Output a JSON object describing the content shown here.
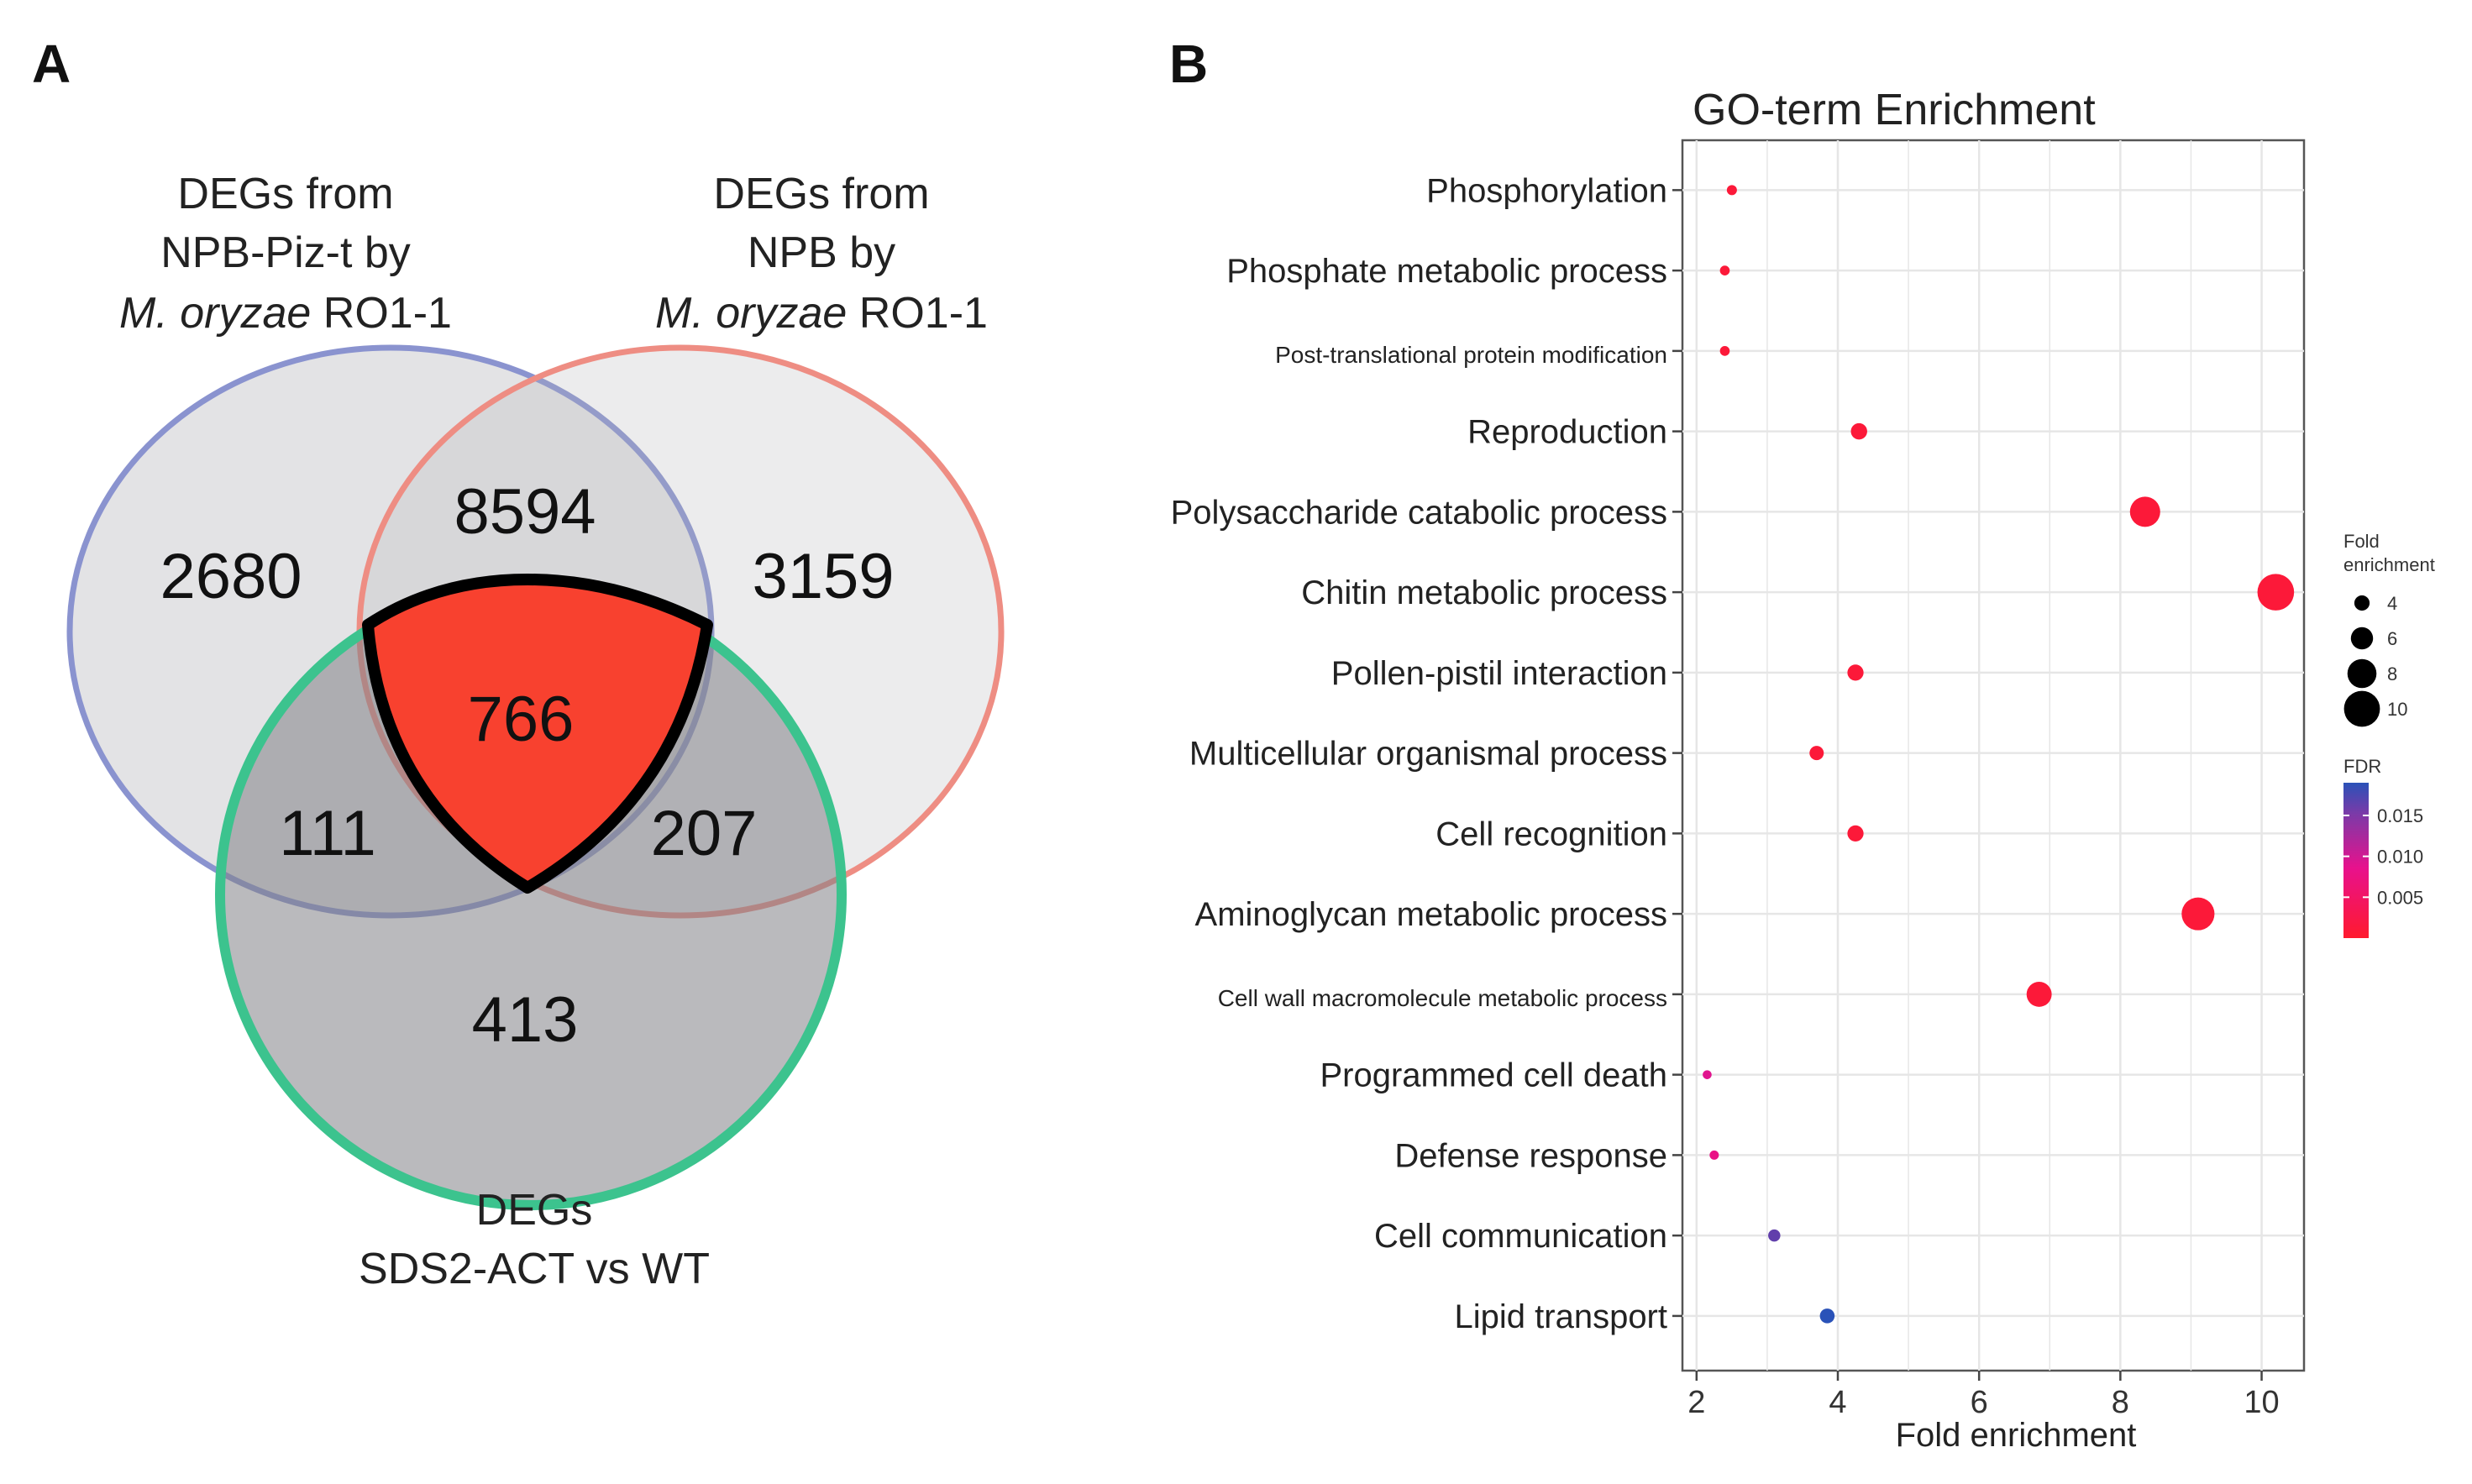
{
  "panel_a": {
    "letter": "A",
    "sets": [
      {
        "name": "npb-piz-t",
        "label_lines": [
          "DEGs from",
          "NPB-Piz-t by"
        ],
        "label_last_italic": "M. oryzae",
        "label_last_plain": " RO1-1",
        "color": "#8a93cf"
      },
      {
        "name": "npb",
        "label_lines": [
          "DEGs from",
          "NPB by"
        ],
        "label_last_italic": "M. oryzae",
        "label_last_plain": " RO1-1",
        "color": "#ee8d83"
      },
      {
        "name": "sds2-act",
        "label_lines": [
          "DEGs",
          "SDS2-ACT vs WT"
        ],
        "color": "#3cc38e"
      }
    ],
    "counts": {
      "only_a": "2680",
      "a_and_b": "8594",
      "only_b": "3159",
      "all_three": "766",
      "a_and_c": "111",
      "b_and_c": "207",
      "only_c": "413"
    },
    "highlight_color": "#f8412f"
  },
  "panel_b": {
    "letter": "B"
  },
  "chart_data": {
    "type": "scatter",
    "title": "GO-term Enrichment",
    "xlabel": "Fold enrichment",
    "ylabel": "",
    "xlim": [
      1.8,
      10.6
    ],
    "xticks": [
      2,
      4,
      6,
      8,
      10
    ],
    "grid": true,
    "terms": [
      {
        "term": "Phosphorylation",
        "fold": 2.5,
        "fdr": 0.001
      },
      {
        "term": "Phosphate metabolic process",
        "fold": 2.4,
        "fdr": 0.001
      },
      {
        "term": "Post-translational protein modification",
        "fold": 2.4,
        "fdr": 0.001
      },
      {
        "term": "Reproduction",
        "fold": 4.3,
        "fdr": 0.001
      },
      {
        "term": "Polysaccharide catabolic process",
        "fold": 8.35,
        "fdr": 0.001
      },
      {
        "term": "Chitin metabolic process",
        "fold": 10.2,
        "fdr": 0.001
      },
      {
        "term": "Pollen-pistil interaction",
        "fold": 4.25,
        "fdr": 0.001
      },
      {
        "term": "Multicellular organismal process",
        "fold": 3.7,
        "fdr": 0.001
      },
      {
        "term": "Cell recognition",
        "fold": 4.25,
        "fdr": 0.001
      },
      {
        "term": "Aminoglycan metabolic process",
        "fold": 9.1,
        "fdr": 0.001
      },
      {
        "term": "Cell wall macromolecule metabolic process",
        "fold": 6.85,
        "fdr": 0.001
      },
      {
        "term": "Programmed cell death",
        "fold": 2.15,
        "fdr": 0.009
      },
      {
        "term": "Defense response",
        "fold": 2.25,
        "fdr": 0.008
      },
      {
        "term": "Cell communication",
        "fold": 3.1,
        "fdr": 0.016
      },
      {
        "term": "Lipid transport",
        "fold": 3.85,
        "fdr": 0.019
      }
    ],
    "size_legend": {
      "title_lines": [
        "Fold",
        "enrichment"
      ],
      "values": [
        4,
        6,
        8,
        10
      ],
      "labels": [
        "4",
        "6",
        "8",
        "10"
      ]
    },
    "color_legend": {
      "title": "FDR",
      "ticks": [
        0.015,
        0.01,
        0.005
      ],
      "labels": [
        "0.015",
        "0.010",
        "0.005"
      ],
      "low_color": "#ff1a2e",
      "mid_color": "#e8118c",
      "high_color": "#2a52b8"
    }
  }
}
